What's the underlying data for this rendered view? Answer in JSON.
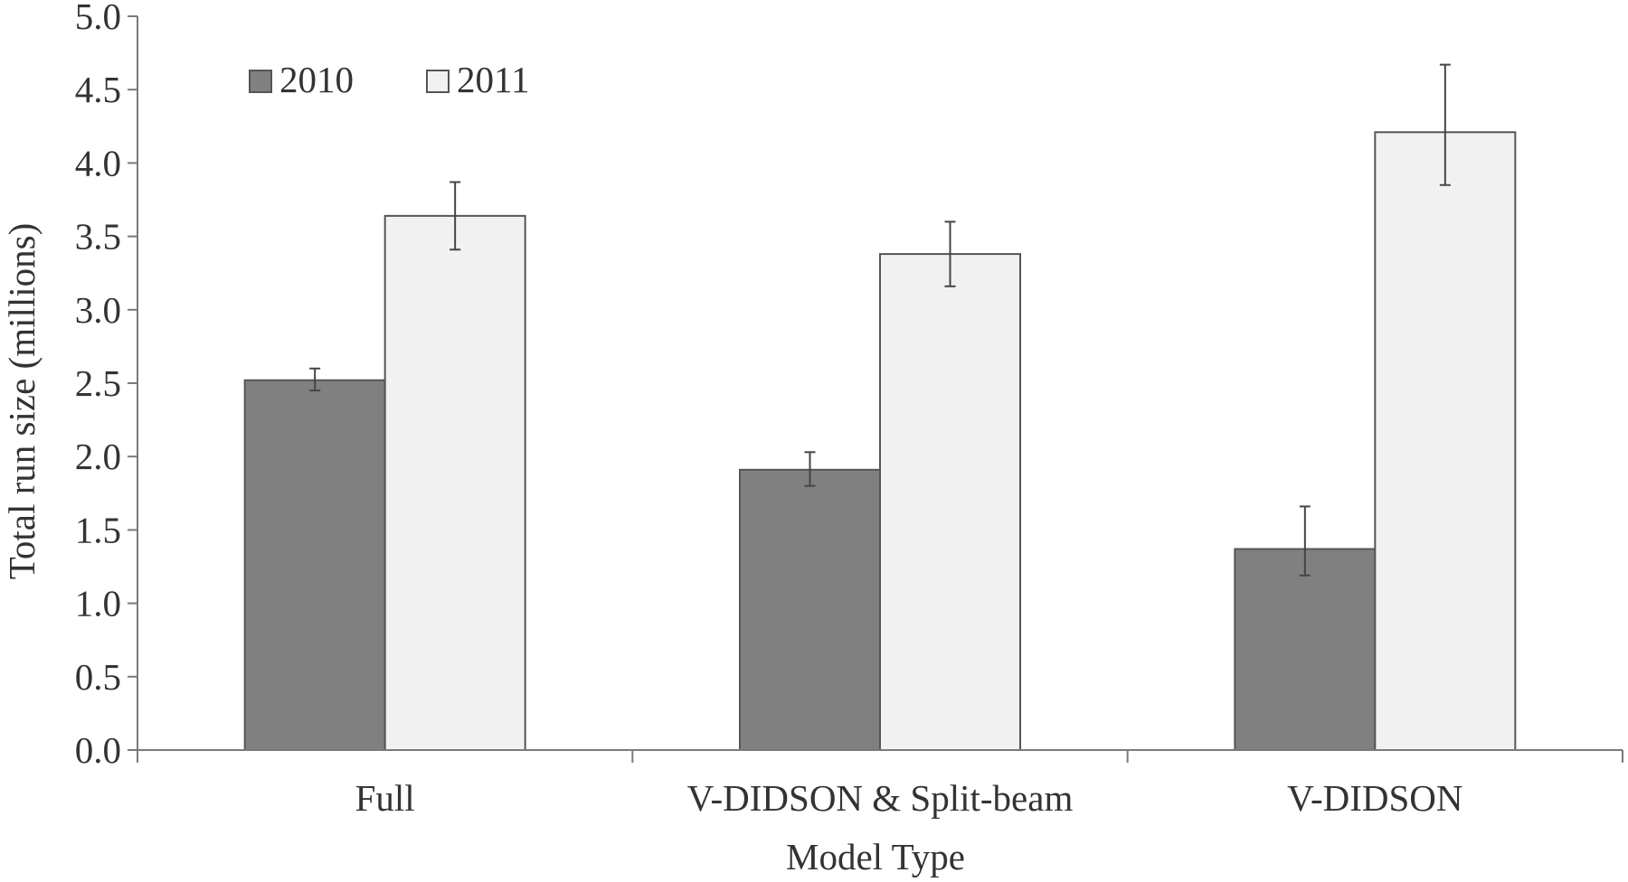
{
  "chart_data": {
    "type": "bar",
    "title": "",
    "xlabel": "Model Type",
    "ylabel": "Total run size (millions)",
    "ylim": [
      0,
      5
    ],
    "yticks": [
      "0.0",
      "0.5",
      "1.0",
      "1.5",
      "2.0",
      "2.5",
      "3.0",
      "3.5",
      "4.0",
      "4.5",
      "5.0"
    ],
    "categories": [
      "Full",
      "V-DIDSON & Split-beam",
      "V-DIDSON"
    ],
    "series": [
      {
        "name": "2010",
        "color": "#808080",
        "values": [
          2.52,
          1.91,
          1.37
        ],
        "error_low": [
          2.45,
          1.8,
          1.19
        ],
        "error_high": [
          2.6,
          2.03,
          1.66
        ]
      },
      {
        "name": "2011",
        "color": "#f1f1f1",
        "values": [
          3.64,
          3.38,
          4.21
        ],
        "error_low": [
          3.41,
          3.16,
          3.85
        ],
        "error_high": [
          3.87,
          3.6,
          4.67
        ]
      }
    ],
    "legend_position": "top-left",
    "grid": false,
    "error_bars": true
  }
}
